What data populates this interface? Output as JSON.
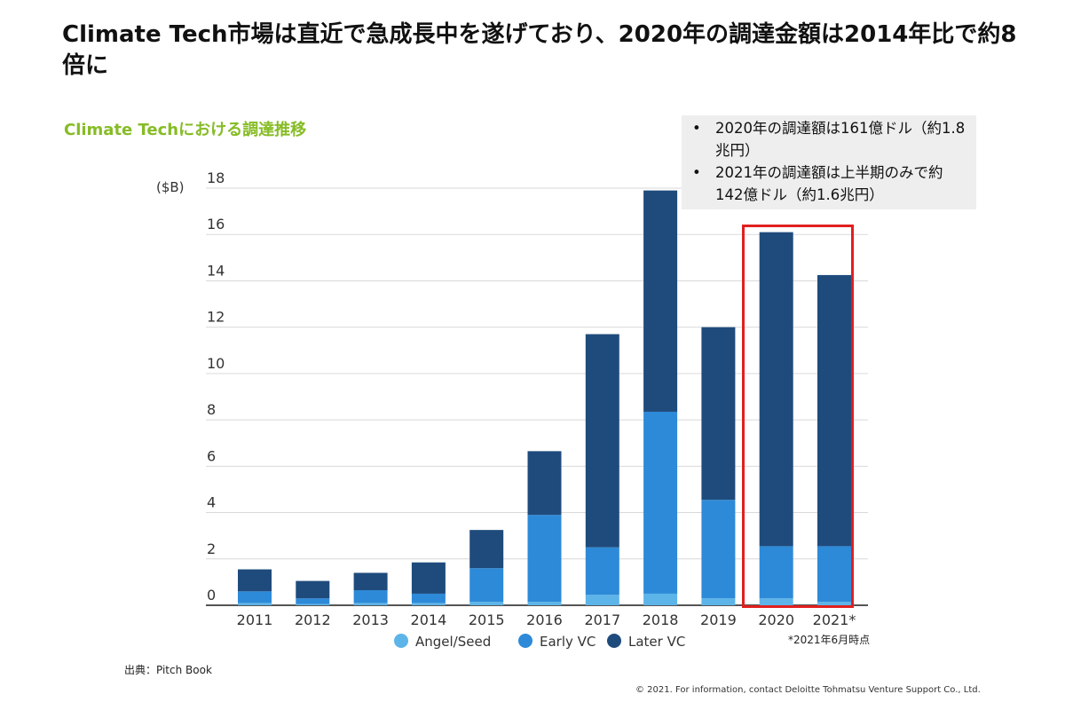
{
  "headline": "Climate Tech市場は直近で急成長中を遂げており、2020年の調達金額は2014年比で約8倍に",
  "subtitle": "Climate Techにおける調達推移",
  "notes": [
    "2020年の調達額は161億ドル（約1.8兆円）",
    "2021年の調達額は上半期のみで約142億ドル（約1.6兆円）"
  ],
  "bullet_char": "•",
  "source": "出典：Pitch Book",
  "footnote": "*2021年6月時点",
  "copyright": "© 2021. For information, contact Deloitte Tohmatsu Venture Support Co., Ltd.",
  "colors": {
    "angel_seed": "#5db4e8",
    "early_vc": "#2d8ad8",
    "later_vc": "#1f4b7c",
    "grid": "#d9d9d9",
    "highlight": "#e0201f",
    "subtitle": "#86bc25"
  },
  "chart_data": {
    "type": "bar",
    "stacked": true,
    "ylabel": "($B)",
    "ylim": [
      0,
      18
    ],
    "yticks": [
      0,
      2,
      4,
      6,
      8,
      10,
      12,
      14,
      16,
      18
    ],
    "grid": true,
    "legend_position": "bottom",
    "categories": [
      "2011",
      "2012",
      "2013",
      "2014",
      "2015",
      "2016",
      "2017",
      "2018",
      "2019",
      "2020",
      "2021*"
    ],
    "series": [
      {
        "name": "Angel/Seed",
        "color": "#5db4e8",
        "values": [
          0.1,
          0.05,
          0.1,
          0.1,
          0.15,
          0.15,
          0.45,
          0.5,
          0.3,
          0.3,
          0.15
        ]
      },
      {
        "name": "Early VC",
        "color": "#2d8ad8",
        "values": [
          0.5,
          0.25,
          0.55,
          0.4,
          1.45,
          3.75,
          2.05,
          7.85,
          4.25,
          2.25,
          2.4
        ]
      },
      {
        "name": "Later VC",
        "color": "#1f4b7c",
        "values": [
          0.95,
          0.75,
          0.75,
          1.35,
          1.65,
          2.75,
          9.2,
          9.55,
          7.45,
          13.55,
          11.7
        ]
      }
    ],
    "highlighted_categories": [
      "2020",
      "2021*"
    ]
  }
}
